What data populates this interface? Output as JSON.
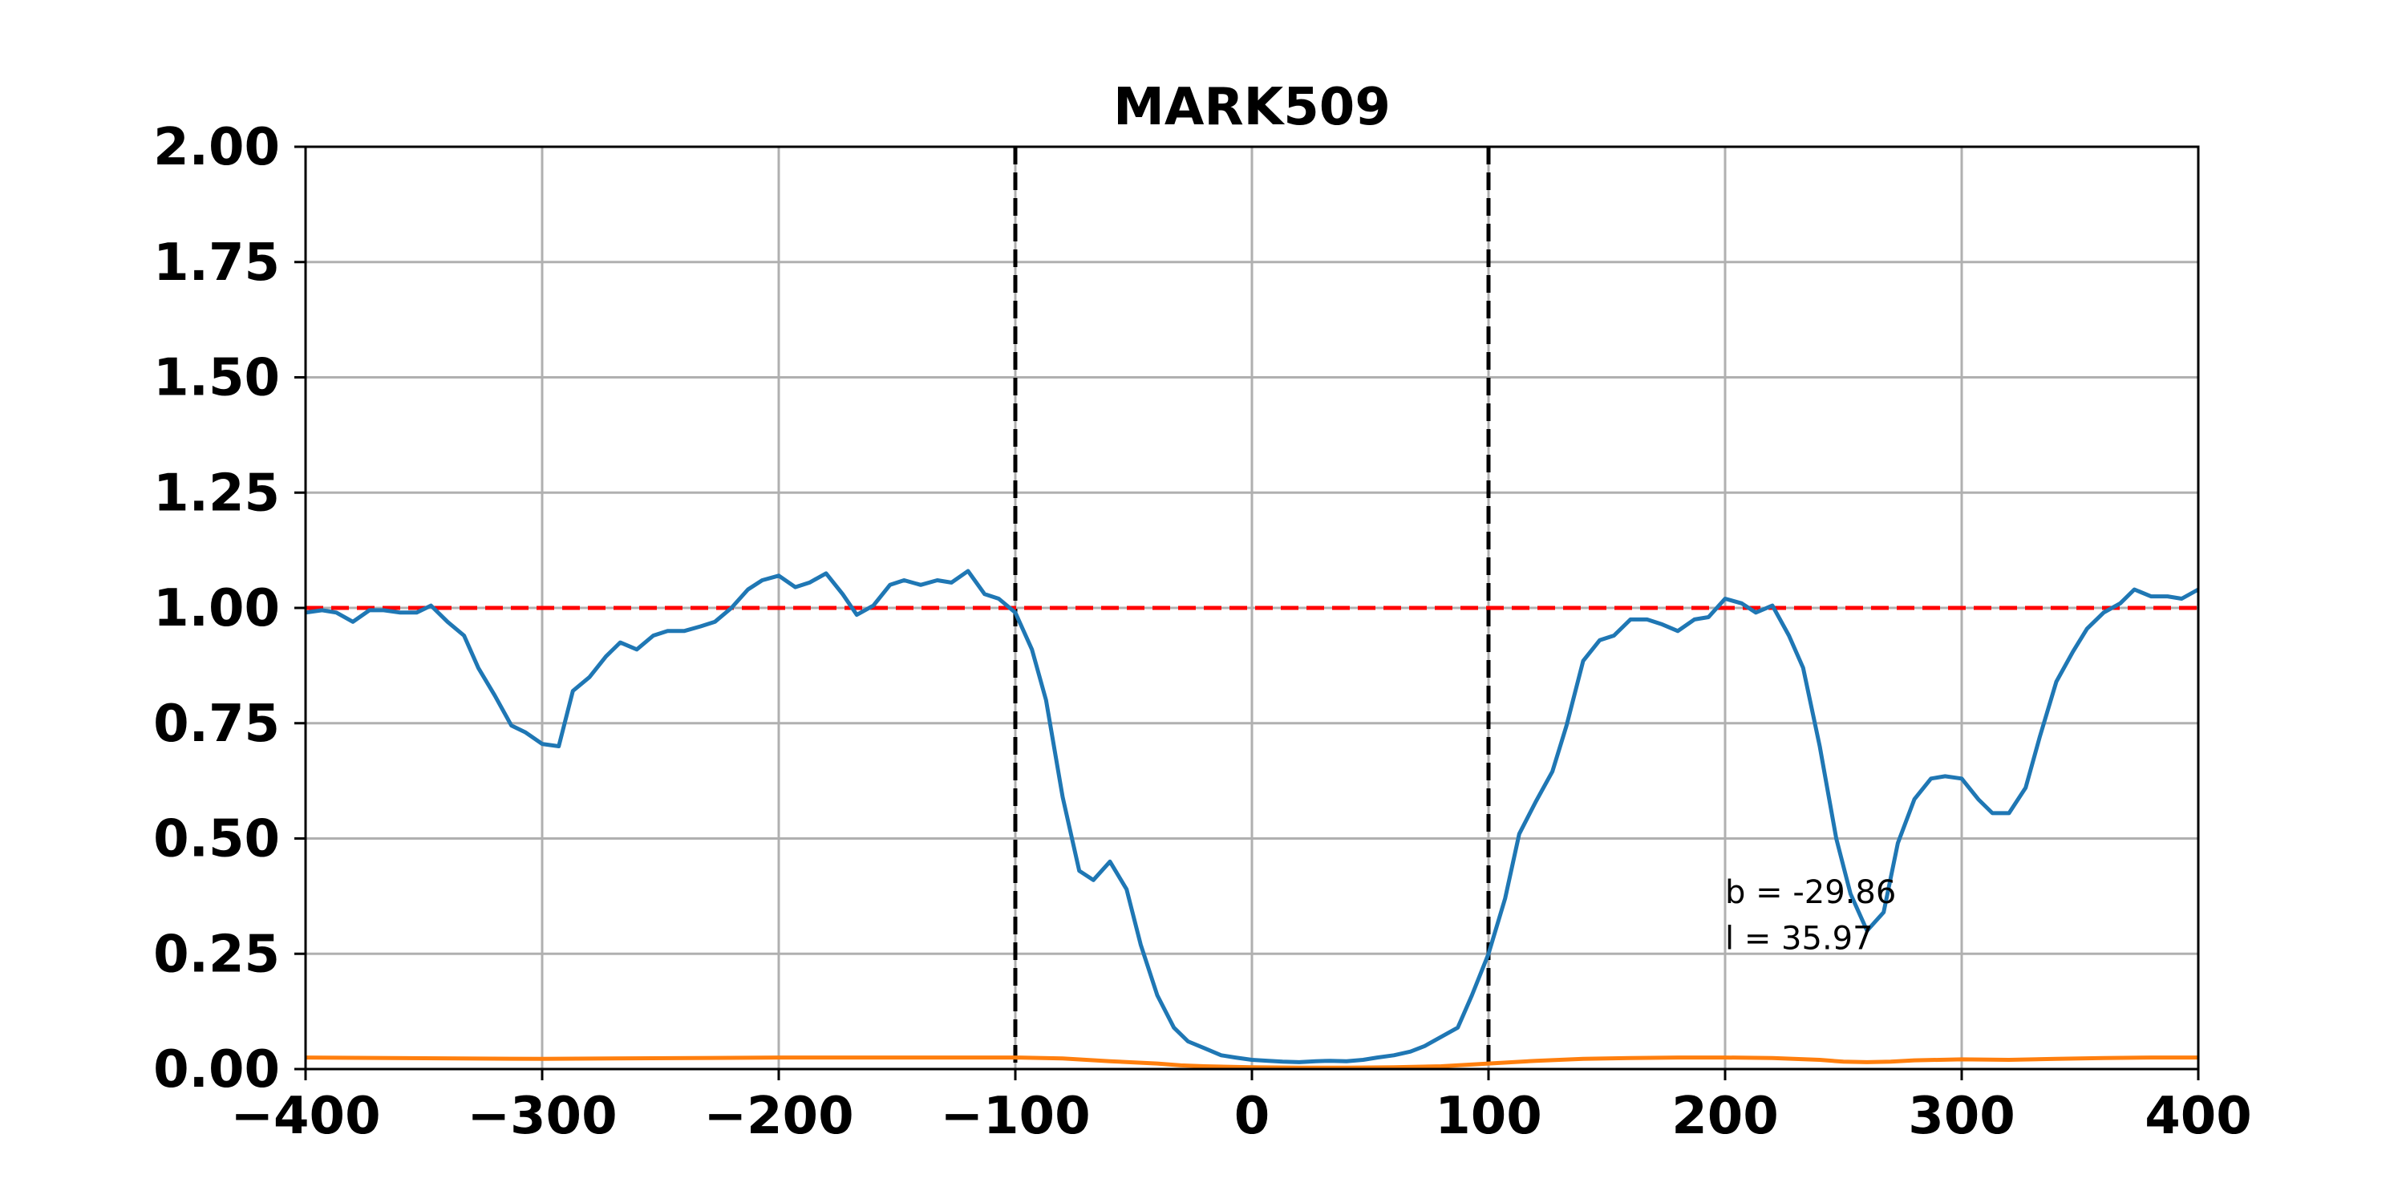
{
  "chart_data": {
    "type": "line",
    "title": "MARK509",
    "xlabel": "",
    "ylabel": "",
    "xlim": [
      -400,
      400
    ],
    "ylim": [
      0,
      2.0
    ],
    "xticks": [
      -400,
      -300,
      -200,
      -100,
      0,
      100,
      200,
      300,
      400
    ],
    "xtick_labels": [
      "−400",
      "−300",
      "−200",
      "−100",
      "0",
      "100",
      "200",
      "300",
      "400"
    ],
    "yticks": [
      0,
      0.25,
      0.5,
      0.75,
      1.0,
      1.25,
      1.5,
      1.75,
      2.0
    ],
    "ytick_labels": [
      "0.00",
      "0.25",
      "0.50",
      "0.75",
      "1.00",
      "1.25",
      "1.50",
      "1.75",
      "2.00"
    ],
    "grid": true,
    "series": [
      {
        "color": "#1f77b4",
        "x": [
          -400,
          -393,
          -387,
          -380,
          -373,
          -367,
          -360,
          -353,
          -347,
          -340,
          -333,
          -327,
          -320,
          -313,
          -307,
          -300,
          -293,
          -287,
          -280,
          -273,
          -267,
          -260,
          -253,
          -247,
          -240,
          -233,
          -227,
          -220,
          -213,
          -207,
          -200,
          -193,
          -187,
          -180,
          -173,
          -167,
          -160,
          -153,
          -147,
          -140,
          -133,
          -127,
          -120,
          -113,
          -107,
          -100,
          -93,
          -87,
          -80,
          -73,
          -67,
          -60,
          -53,
          -47,
          -40,
          -33,
          -27,
          -20,
          -13,
          -7,
          0,
          7,
          13,
          20,
          27,
          33,
          40,
          47,
          53,
          60,
          67,
          73,
          80,
          87,
          93,
          100,
          107,
          113,
          120,
          127,
          133,
          140,
          147,
          153,
          160,
          167,
          173,
          180,
          187,
          193,
          200,
          207,
          213,
          220,
          227,
          233,
          240,
          247,
          253,
          260,
          267,
          273,
          280,
          287,
          293,
          300,
          307,
          313,
          320,
          327,
          333,
          340,
          347,
          353,
          360,
          367,
          373,
          380,
          387,
          393,
          400
        ],
        "values": [
          0.99,
          0.995,
          0.99,
          0.97,
          0.995,
          0.995,
          0.99,
          0.99,
          1.005,
          0.97,
          0.94,
          0.87,
          0.81,
          0.745,
          0.73,
          0.705,
          0.7,
          0.82,
          0.85,
          0.895,
          0.925,
          0.91,
          0.94,
          0.95,
          0.95,
          0.96,
          0.97,
          1.0,
          1.04,
          1.06,
          1.07,
          1.045,
          1.055,
          1.075,
          1.03,
          0.985,
          1.005,
          1.05,
          1.06,
          1.05,
          1.06,
          1.055,
          1.08,
          1.03,
          1.02,
          0.99,
          0.91,
          0.8,
          0.59,
          0.43,
          0.41,
          0.45,
          0.39,
          0.27,
          0.16,
          0.09,
          0.06,
          0.045,
          0.03,
          0.025,
          0.02,
          0.018,
          0.016,
          0.015,
          0.017,
          0.018,
          0.017,
          0.02,
          0.025,
          0.03,
          0.038,
          0.05,
          0.07,
          0.09,
          0.16,
          0.25,
          0.37,
          0.51,
          0.58,
          0.645,
          0.745,
          0.885,
          0.93,
          0.94,
          0.975,
          0.975,
          0.965,
          0.95,
          0.975,
          0.98,
          1.02,
          1.01,
          0.99,
          1.005,
          0.94,
          0.87,
          0.7,
          0.5,
          0.38,
          0.3,
          0.34,
          0.49,
          0.585,
          0.63,
          0.635,
          0.63,
          0.585,
          0.555,
          0.555,
          0.61,
          0.72,
          0.84,
          0.905,
          0.955,
          0.99,
          1.01,
          1.04,
          1.025,
          1.025,
          1.02,
          1.04
        ]
      },
      {
        "color": "#ff7f0e",
        "x": [
          -400,
          -300,
          -200,
          -100,
          -80,
          -60,
          -40,
          -30,
          -20,
          0,
          20,
          40,
          60,
          80,
          100,
          120,
          140,
          160,
          180,
          200,
          220,
          240,
          250,
          260,
          270,
          280,
          300,
          320,
          340,
          360,
          380,
          400
        ],
        "values": [
          0.025,
          0.022,
          0.025,
          0.025,
          0.023,
          0.017,
          0.012,
          0.008,
          0.006,
          0.004,
          0.003,
          0.003,
          0.004,
          0.006,
          0.012,
          0.018,
          0.022,
          0.024,
          0.025,
          0.025,
          0.024,
          0.02,
          0.016,
          0.015,
          0.016,
          0.019,
          0.021,
          0.02,
          0.022,
          0.024,
          0.025,
          0.025
        ]
      }
    ],
    "hlines": [
      {
        "y": 1.0,
        "color": "#ff0000",
        "style": "dashed"
      }
    ],
    "vlines": [
      {
        "x": -100,
        "color": "#000000",
        "style": "dashed"
      },
      {
        "x": 100,
        "color": "#000000",
        "style": "dashed"
      }
    ],
    "annotations": [
      {
        "text": "b = -29.86",
        "x": 200,
        "y": 0.36
      },
      {
        "text": "l = 35.97",
        "x": 200,
        "y": 0.26
      }
    ]
  }
}
